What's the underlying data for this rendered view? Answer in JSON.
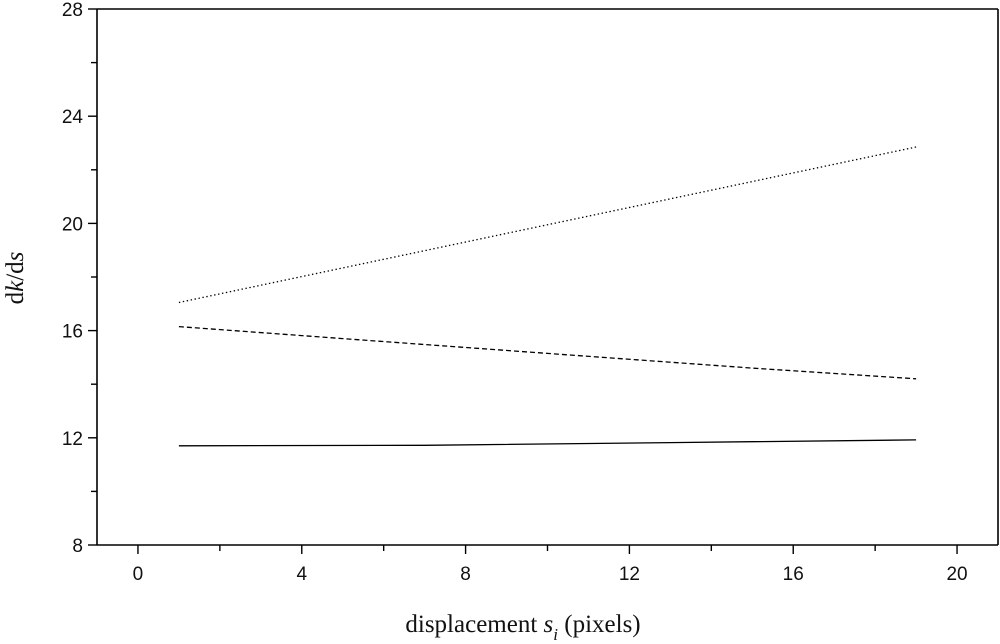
{
  "chart_data": {
    "type": "line",
    "title": "",
    "xlabel": {
      "prefix": "displacement ",
      "symbol": "s",
      "subscript": "i",
      "suffix": " (pixels)"
    },
    "ylabel": {
      "part1": "d",
      "italic1": "k",
      "part2": "/d",
      "italic2": "s"
    },
    "xlim": [
      -1,
      21
    ],
    "ylim": [
      8,
      28
    ],
    "xticks": [
      0,
      4,
      8,
      12,
      16,
      20
    ],
    "yticks": [
      8,
      12,
      16,
      20,
      24,
      28
    ],
    "x_minor_step": 2,
    "y_minor_step": 2,
    "grid": false,
    "legend": "none",
    "series": [
      {
        "style": "dotted",
        "color": "#000000",
        "x": [
          1,
          19
        ],
        "y": [
          17.05,
          22.85
        ]
      },
      {
        "style": "dashed",
        "color": "#000000",
        "x": [
          1,
          5,
          10,
          15,
          19
        ],
        "y": [
          16.15,
          15.7,
          15.15,
          14.6,
          14.2
        ]
      },
      {
        "style": "solid",
        "color": "#000000",
        "x": [
          1,
          7,
          13,
          19
        ],
        "y": [
          11.7,
          11.72,
          11.82,
          11.92
        ]
      }
    ]
  }
}
